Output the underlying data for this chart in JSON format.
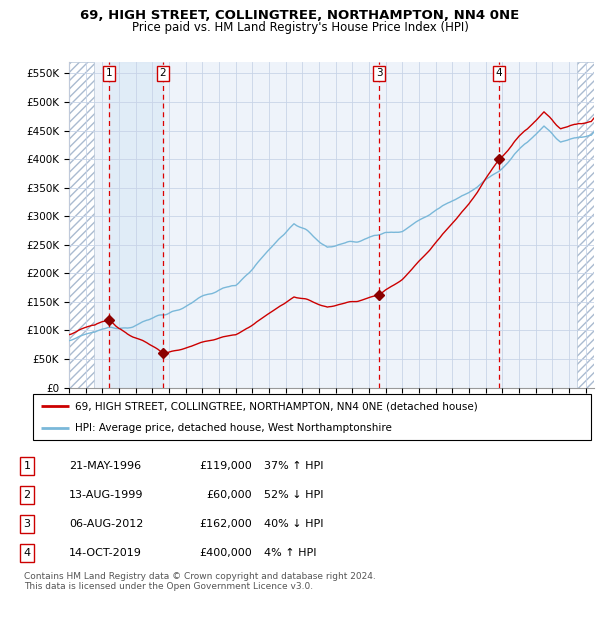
{
  "title1": "69, HIGH STREET, COLLINGTREE, NORTHAMPTON, NN4 0NE",
  "title2": "Price paid vs. HM Land Registry's House Price Index (HPI)",
  "ylabel_ticks": [
    "£0",
    "£50K",
    "£100K",
    "£150K",
    "£200K",
    "£250K",
    "£300K",
    "£350K",
    "£400K",
    "£450K",
    "£500K",
    "£550K"
  ],
  "ytick_values": [
    0,
    50000,
    100000,
    150000,
    200000,
    250000,
    300000,
    350000,
    400000,
    450000,
    500000,
    550000
  ],
  "xmin": 1994.0,
  "xmax": 2025.5,
  "ymin": 0,
  "ymax": 570000,
  "sales": [
    {
      "num": 1,
      "date": "21-MAY-1996",
      "year": 1996.38,
      "price": 119000
    },
    {
      "num": 2,
      "date": "13-AUG-1999",
      "year": 1999.62,
      "price": 60000
    },
    {
      "num": 3,
      "date": "06-AUG-2012",
      "year": 2012.6,
      "price": 162000
    },
    {
      "num": 4,
      "date": "14-OCT-2019",
      "year": 2019.79,
      "price": 400000
    }
  ],
  "hpi_color": "#7ab8d9",
  "price_color": "#cc0000",
  "sale_marker_color": "#8b0000",
  "bg_main_color": "#eef3fa",
  "grid_color": "#c8d4e8",
  "legend_label_red": "69, HIGH STREET, COLLINGTREE, NORTHAMPTON, NN4 0NE (detached house)",
  "legend_label_blue": "HPI: Average price, detached house, West Northamptonshire",
  "footer": "Contains HM Land Registry data © Crown copyright and database right 2024.\nThis data is licensed under the Open Government Licence v3.0.",
  "table_rows": [
    {
      "num": 1,
      "date": "21-MAY-1996",
      "price": "£119,000",
      "pct": "37% ↑ HPI"
    },
    {
      "num": 2,
      "date": "13-AUG-1999",
      "price": "£60,000",
      "pct": "52% ↓ HPI"
    },
    {
      "num": 3,
      "date": "06-AUG-2012",
      "price": "£162,000",
      "pct": "40% ↓ HPI"
    },
    {
      "num": 4,
      "date": "14-OCT-2019",
      "price": "£400,000",
      "pct": "4% ↑ HPI"
    }
  ],
  "hatch_left_end": 1995.5,
  "hatch_right_start": 2024.5
}
